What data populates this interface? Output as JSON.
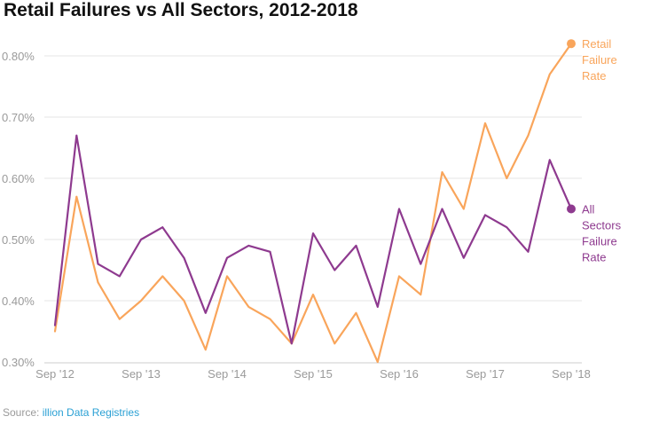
{
  "title": "Retail Failures vs All Sectors, 2012-2018",
  "source": {
    "prefix": "Source: ",
    "name": "illion Data Registries"
  },
  "colors": {
    "retail": "#f9a55b",
    "all": "#8e3a8f",
    "grid": "#e6e6e6",
    "axis": "#cccccc",
    "text": "#9a9a9a"
  },
  "chart_data": {
    "type": "line",
    "title": "Retail Failures vs All Sectors, 2012-2018",
    "ylim": [
      0.3,
      0.82
    ],
    "yticks": [
      0.3,
      0.4,
      0.5,
      0.6,
      0.7,
      0.8
    ],
    "ytick_labels": [
      "0.30%",
      "0.40%",
      "0.50%",
      "0.60%",
      "0.70%",
      "0.80%"
    ],
    "xtick_labels": [
      "Sep '12",
      "Sep '13",
      "Sep '14",
      "Sep '15",
      "Sep '16",
      "Sep '17",
      "Sep '18"
    ],
    "xtick_positions": [
      0,
      4,
      8,
      12,
      16,
      20,
      24
    ],
    "grid": true,
    "series": [
      {
        "key": "retail",
        "label_lines": [
          "Retail",
          "Failure",
          "Rate"
        ],
        "values": [
          0.35,
          0.57,
          0.43,
          0.37,
          0.4,
          0.44,
          0.4,
          0.32,
          0.44,
          0.39,
          0.37,
          0.33,
          0.41,
          0.33,
          0.38,
          0.3,
          0.44,
          0.41,
          0.61,
          0.55,
          0.69,
          0.6,
          0.67,
          0.77,
          0.82
        ]
      },
      {
        "key": "all",
        "label_lines": [
          "All",
          "Sectors",
          "Failure",
          "Rate"
        ],
        "values": [
          0.36,
          0.67,
          0.46,
          0.44,
          0.5,
          0.52,
          0.47,
          0.38,
          0.47,
          0.49,
          0.48,
          0.33,
          0.51,
          0.45,
          0.49,
          0.39,
          0.55,
          0.46,
          0.55,
          0.47,
          0.54,
          0.52,
          0.48,
          0.63,
          0.55
        ]
      }
    ]
  }
}
